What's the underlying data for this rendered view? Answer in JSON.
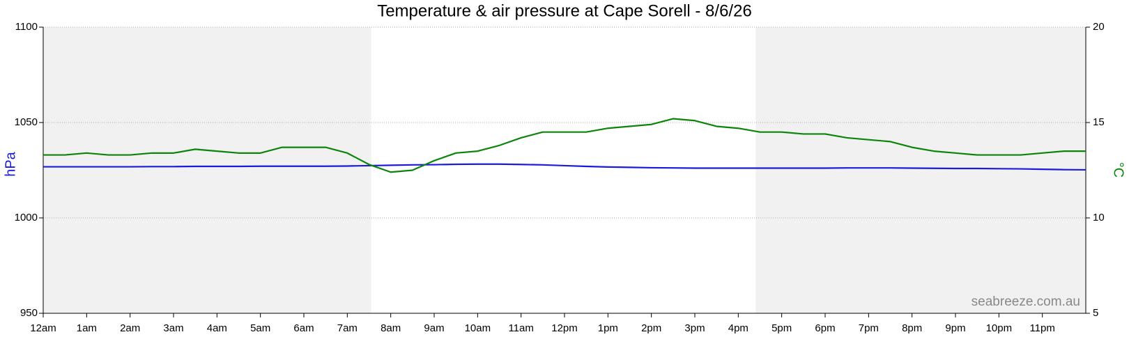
{
  "chart_data": {
    "type": "line",
    "title": "Temperature & air pressure at Cape Sorell - 8/6/26",
    "ylabel": "hPa",
    "y2label": "°C",
    "watermark": "seabreeze.com.au",
    "x": [
      0,
      0.5,
      1,
      1.5,
      2,
      2.5,
      3,
      3.5,
      4,
      4.5,
      5,
      5.5,
      6,
      6.5,
      7,
      7.5,
      8,
      8.5,
      9,
      9.5,
      10,
      10.5,
      11,
      11.5,
      12,
      12.5,
      13,
      13.5,
      14,
      14.5,
      15,
      15.5,
      16,
      16.5,
      17,
      17.5,
      18,
      18.5,
      19,
      19.5,
      20,
      20.5,
      21,
      21.5,
      22,
      22.5,
      23,
      23.5,
      24
    ],
    "xlim": [
      0,
      24
    ],
    "xticks": [
      {
        "value": 0,
        "label": "12am"
      },
      {
        "value": 1,
        "label": "1am"
      },
      {
        "value": 2,
        "label": "2am"
      },
      {
        "value": 3,
        "label": "3am"
      },
      {
        "value": 4,
        "label": "4am"
      },
      {
        "value": 5,
        "label": "5am"
      },
      {
        "value": 6,
        "label": "6am"
      },
      {
        "value": 7,
        "label": "7am"
      },
      {
        "value": 8,
        "label": "8am"
      },
      {
        "value": 9,
        "label": "9am"
      },
      {
        "value": 10,
        "label": "10am"
      },
      {
        "value": 11,
        "label": "11am"
      },
      {
        "value": 12,
        "label": "12pm"
      },
      {
        "value": 13,
        "label": "1pm"
      },
      {
        "value": 14,
        "label": "2pm"
      },
      {
        "value": 15,
        "label": "3pm"
      },
      {
        "value": 16,
        "label": "4pm"
      },
      {
        "value": 17,
        "label": "5pm"
      },
      {
        "value": 18,
        "label": "6pm"
      },
      {
        "value": 19,
        "label": "7pm"
      },
      {
        "value": 20,
        "label": "8pm"
      },
      {
        "value": 21,
        "label": "9pm"
      },
      {
        "value": 22,
        "label": "10pm"
      },
      {
        "value": 23,
        "label": "11pm"
      }
    ],
    "ylim": [
      950,
      1100
    ],
    "yticks": [
      950,
      1000,
      1050,
      1100
    ],
    "y2lim": [
      5,
      20
    ],
    "y2ticks": [
      5,
      10,
      15,
      20
    ],
    "grid": true,
    "shaded_ranges": [
      [
        0,
        7.55
      ],
      [
        16.4,
        24
      ]
    ],
    "series": [
      {
        "name": "Pressure",
        "color": "#1a1adb",
        "values": [
          1026.8,
          1026.8,
          1026.8,
          1026.8,
          1026.8,
          1026.9,
          1026.9,
          1027.0,
          1027.0,
          1027.0,
          1027.1,
          1027.1,
          1027.1,
          1027.1,
          1027.2,
          1027.4,
          1027.6,
          1027.8,
          1027.9,
          1028.1,
          1028.2,
          1028.2,
          1028.0,
          1027.8,
          1027.4,
          1027.0,
          1026.7,
          1026.5,
          1026.3,
          1026.2,
          1026.1,
          1026.1,
          1026.1,
          1026.1,
          1026.1,
          1026.1,
          1026.1,
          1026.2,
          1026.2,
          1026.2,
          1026.1,
          1026.0,
          1025.9,
          1025.9,
          1025.8,
          1025.7,
          1025.5,
          1025.3,
          1025.2
        ]
      },
      {
        "name": "Temperature",
        "color": "#0a850a",
        "axis": "y2",
        "values": [
          13.3,
          13.3,
          13.4,
          13.3,
          13.3,
          13.4,
          13.4,
          13.6,
          13.5,
          13.4,
          13.4,
          13.7,
          13.7,
          13.7,
          13.4,
          12.8,
          12.4,
          12.5,
          13.0,
          13.4,
          13.5,
          13.8,
          14.2,
          14.5,
          14.5,
          14.5,
          14.7,
          14.8,
          14.9,
          15.2,
          15.1,
          14.8,
          14.7,
          14.5,
          14.5,
          14.4,
          14.4,
          14.2,
          14.1,
          14.0,
          13.7,
          13.5,
          13.4,
          13.3,
          13.3,
          13.3,
          13.4,
          13.5,
          13.5
        ]
      }
    ]
  }
}
